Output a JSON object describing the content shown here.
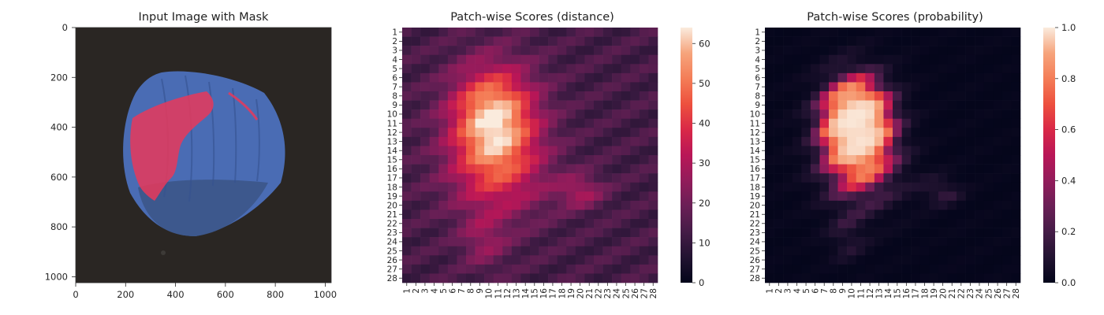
{
  "chart_data": [
    {
      "type": "image",
      "title": "Input Image with Mask",
      "x_ticks": [
        "0",
        "200",
        "400",
        "600",
        "800",
        "1000"
      ],
      "y_ticks": [
        "0",
        "200",
        "400",
        "600",
        "800",
        "1000"
      ],
      "xlim": [
        0,
        1024
      ],
      "ylim": [
        1024,
        0
      ],
      "content": "hazelnut with red anomaly mask overlay"
    },
    {
      "type": "heatmap",
      "title": "Patch-wise Scores (distance)",
      "rows": [
        "1",
        "2",
        "3",
        "4",
        "5",
        "6",
        "7",
        "8",
        "9",
        "10",
        "11",
        "12",
        "13",
        "14",
        "15",
        "16",
        "17",
        "18",
        "19",
        "20",
        "21",
        "22",
        "23",
        "24",
        "25",
        "26",
        "27",
        "28"
      ],
      "cols": [
        "1",
        "2",
        "3",
        "4",
        "5",
        "6",
        "7",
        "8",
        "9",
        "10",
        "11",
        "12",
        "13",
        "14",
        "15",
        "16",
        "17",
        "18",
        "19",
        "20",
        "21",
        "22",
        "23",
        "24",
        "25",
        "26",
        "27",
        "28"
      ],
      "colorbar_ticks": [
        "0",
        "10",
        "20",
        "30",
        "40",
        "50",
        "60"
      ],
      "vmin": 0,
      "vmax": 64,
      "colormap": "rocket"
    },
    {
      "type": "heatmap",
      "title": "Patch-wise Scores (probability)",
      "rows": [
        "1",
        "2",
        "3",
        "4",
        "5",
        "6",
        "7",
        "8",
        "9",
        "10",
        "11",
        "12",
        "13",
        "14",
        "15",
        "16",
        "17",
        "18",
        "19",
        "20",
        "21",
        "22",
        "23",
        "24",
        "25",
        "26",
        "27",
        "28"
      ],
      "cols": [
        "1",
        "2",
        "3",
        "4",
        "5",
        "6",
        "7",
        "8",
        "9",
        "10",
        "11",
        "12",
        "13",
        "14",
        "15",
        "16",
        "17",
        "18",
        "19",
        "20",
        "21",
        "22",
        "23",
        "24",
        "25",
        "26",
        "27",
        "28"
      ],
      "colorbar_ticks": [
        "0.0",
        "0.2",
        "0.4",
        "0.6",
        "0.8",
        "1.0"
      ],
      "vmin": 0,
      "vmax": 1,
      "colormap": "rocket"
    }
  ]
}
